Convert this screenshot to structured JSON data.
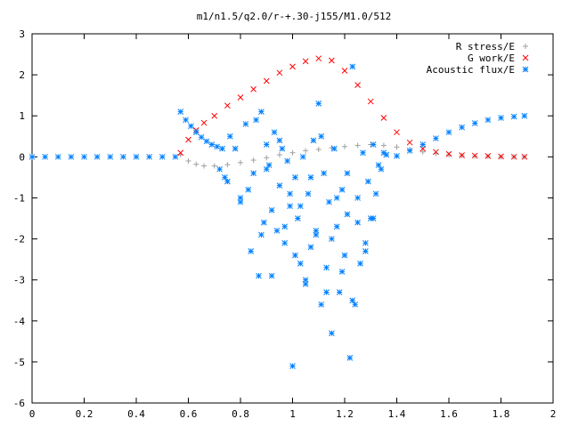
{
  "chart_data": {
    "type": "scatter",
    "title": "m1/n1.5/q2.0/r-+.30-j155/M1.0/512",
    "xlabel": "",
    "ylabel": "",
    "xlim": [
      0,
      2
    ],
    "ylim": [
      -6,
      3
    ],
    "xticks": [
      "0",
      "0.2",
      "0.4",
      "0.6",
      "0.8",
      "1",
      "1.2",
      "1.4",
      "1.6",
      "1.8",
      "2"
    ],
    "yticks": [
      "-6",
      "-5",
      "-4",
      "-3",
      "-2",
      "-1",
      "0",
      "1",
      "2",
      "3"
    ],
    "grid": false,
    "legend_position": "top-right",
    "colors": {
      "r_stress": "#a0a0a0",
      "g_work": "#ff0000",
      "acoustic": "#0080ff"
    },
    "series": [
      {
        "name": "R stress/E",
        "marker": "+",
        "x": [
          0.57,
          0.6,
          0.63,
          0.66,
          0.7,
          0.75,
          0.8,
          0.85,
          0.9,
          0.95,
          1.0,
          1.05,
          1.1,
          1.15,
          1.2,
          1.25,
          1.3,
          1.35,
          1.4,
          1.45,
          1.5,
          1.55,
          1.6,
          1.65,
          1.7,
          1.75,
          1.8,
          1.85,
          1.89
        ],
        "y": [
          0.05,
          -0.1,
          -0.18,
          -0.22,
          -0.22,
          -0.19,
          -0.14,
          -0.08,
          -0.02,
          0.05,
          0.1,
          0.15,
          0.18,
          0.22,
          0.25,
          0.28,
          0.3,
          0.28,
          0.24,
          0.18,
          0.12,
          0.08,
          0.05,
          0.03,
          0.02,
          0.01,
          0.0,
          0.0,
          0.0
        ]
      },
      {
        "name": "G work/E",
        "marker": "x",
        "x": [
          0.57,
          0.6,
          0.63,
          0.66,
          0.7,
          0.75,
          0.8,
          0.85,
          0.9,
          0.95,
          1.0,
          1.05,
          1.1,
          1.15,
          1.2,
          1.25,
          1.3,
          1.35,
          1.4,
          1.45,
          1.5,
          1.55,
          1.6,
          1.65,
          1.7,
          1.75,
          1.8,
          1.85,
          1.89
        ],
        "y": [
          0.1,
          0.42,
          0.65,
          0.83,
          1.0,
          1.25,
          1.45,
          1.65,
          1.85,
          2.05,
          2.2,
          2.33,
          2.4,
          2.35,
          2.1,
          1.75,
          1.35,
          0.95,
          0.6,
          0.35,
          0.2,
          0.12,
          0.07,
          0.04,
          0.03,
          0.02,
          0.01,
          0.0,
          0.0
        ]
      },
      {
        "name": "Acoustic flux/E",
        "marker": "*",
        "x": [
          0.0,
          0.05,
          0.1,
          0.15,
          0.2,
          0.25,
          0.3,
          0.35,
          0.4,
          0.45,
          0.5,
          0.55,
          0.57,
          0.59,
          0.61,
          0.63,
          0.65,
          0.67,
          0.69,
          0.71,
          0.73,
          1.36,
          1.4,
          1.45,
          1.5,
          1.55,
          1.6,
          1.65,
          1.7,
          1.75,
          1.8,
          1.85,
          1.89,
          0.72,
          0.74,
          0.76,
          0.78,
          0.8,
          0.82,
          0.84,
          0.85,
          0.87,
          0.88,
          0.89,
          0.9,
          0.91,
          0.92,
          0.93,
          0.94,
          0.95,
          0.96,
          0.97,
          0.98,
          0.99,
          1.0,
          1.01,
          1.02,
          1.03,
          1.04,
          1.05,
          1.06,
          1.07,
          1.08,
          1.09,
          1.1,
          1.11,
          1.12,
          1.13,
          1.14,
          1.15,
          1.16,
          1.17,
          1.18,
          1.19,
          1.2,
          1.21,
          1.22,
          1.23,
          1.24,
          1.25,
          1.26,
          1.27,
          1.28,
          1.29,
          1.3,
          1.31,
          1.32,
          1.33,
          1.35,
          0.75,
          0.8,
          0.83,
          0.86,
          0.88,
          0.9,
          0.92,
          0.95,
          0.97,
          0.99,
          1.01,
          1.03,
          1.05,
          1.07,
          1.09,
          1.11,
          1.13,
          1.15,
          1.17,
          1.19,
          1.21,
          1.23,
          1.25,
          1.28,
          1.31,
          1.34
        ],
        "y": [
          0.0,
          0.0,
          0.0,
          0.0,
          0.0,
          0.0,
          0.0,
          0.0,
          0.0,
          0.0,
          0.0,
          0.0,
          1.1,
          0.9,
          0.75,
          0.6,
          0.48,
          0.38,
          0.3,
          0.25,
          0.2,
          0.05,
          0.02,
          0.15,
          0.3,
          0.45,
          0.6,
          0.72,
          0.82,
          0.9,
          0.95,
          0.98,
          1.0,
          -0.3,
          -0.5,
          0.5,
          0.2,
          -1.0,
          0.8,
          -2.3,
          -0.4,
          -2.9,
          1.1,
          -1.6,
          0.3,
          -0.2,
          -1.3,
          0.6,
          -1.8,
          -0.7,
          0.2,
          -2.1,
          -0.1,
          -1.2,
          -5.1,
          -0.5,
          -1.5,
          -2.6,
          0.0,
          -3.1,
          -0.9,
          -2.2,
          0.4,
          -1.9,
          1.3,
          -3.6,
          -0.4,
          -2.7,
          -1.1,
          -4.3,
          0.2,
          -1.7,
          -3.3,
          -0.8,
          -2.4,
          -1.4,
          -4.9,
          2.2,
          -3.6,
          -1.0,
          -2.6,
          0.1,
          -2.1,
          -0.6,
          -1.5,
          0.3,
          -0.9,
          -0.2,
          0.1,
          -0.6,
          -1.1,
          -0.8,
          0.9,
          -1.9,
          -0.3,
          -2.9,
          0.4,
          -1.7,
          -0.9,
          -2.4,
          -1.2,
          -3.0,
          -0.5,
          -1.8,
          0.5,
          -3.3,
          -2.0,
          -1.0,
          -2.8,
          -0.4,
          -3.5,
          -1.6,
          -2.3,
          -1.5,
          -0.3
        ]
      }
    ]
  }
}
